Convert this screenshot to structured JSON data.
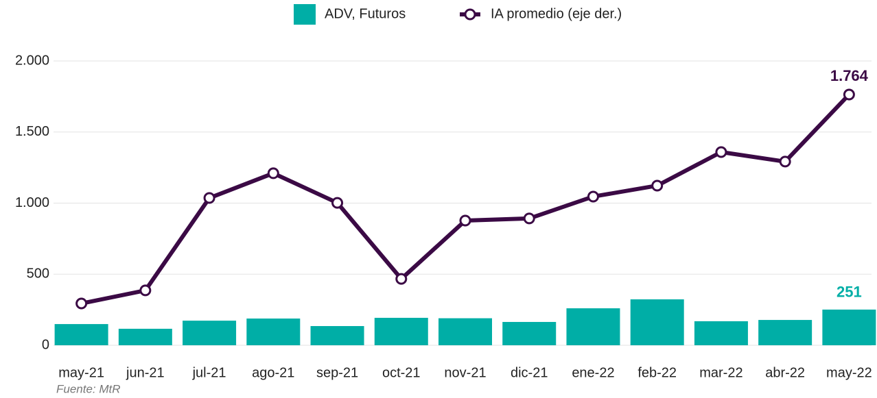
{
  "chart_data": {
    "type": "bar_line",
    "categories": [
      "may-21",
      "jun-21",
      "jul-21",
      "ago-21",
      "sep-21",
      "oct-21",
      "nov-21",
      "dic-21",
      "ene-22",
      "feb-22",
      "mar-22",
      "abr-22",
      "may-22"
    ],
    "series": [
      {
        "name": "ADV, Futuros",
        "type": "bar",
        "color": "#00aea6",
        "values": [
          149,
          116,
          173,
          188,
          135,
          193,
          190,
          164,
          260,
          323,
          169,
          178,
          251
        ],
        "value_labels": [
          null,
          null,
          null,
          null,
          null,
          null,
          null,
          null,
          null,
          null,
          null,
          null,
          "251"
        ]
      },
      {
        "name": "IA promedio (eje der.)",
        "type": "line",
        "color": "#3b0a45",
        "values": [
          294,
          386,
          1036,
          1210,
          1002,
          467,
          877,
          892,
          1046,
          1123,
          1359,
          1292,
          1764
        ],
        "value_labels": [
          null,
          null,
          null,
          null,
          null,
          null,
          null,
          null,
          null,
          null,
          null,
          null,
          "1.764"
        ]
      }
    ],
    "ylim": [
      0,
      2000
    ],
    "yticks": [
      0,
      500,
      {
        "value": 1000,
        "label": "1.000"
      },
      {
        "value": 1500,
        "label": "1.500"
      },
      {
        "value": 2000,
        "label": "2.000"
      }
    ],
    "grid": true,
    "source": "Fuente: MtR"
  }
}
